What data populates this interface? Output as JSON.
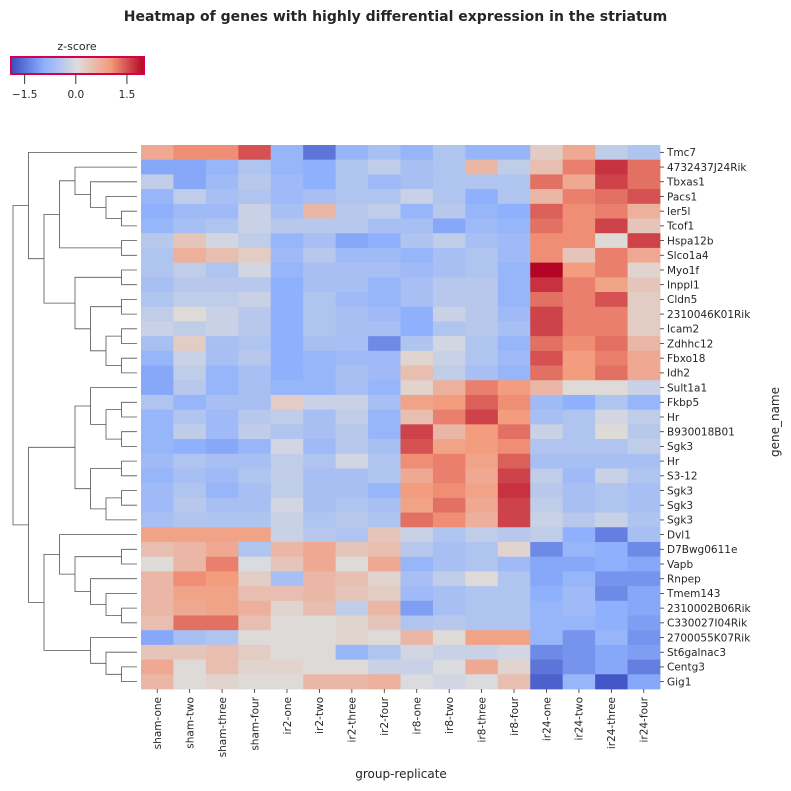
{
  "chart_data": {
    "type": "heatmap",
    "title": "Heatmap of genes with highly differential expression in the striatum",
    "xlabel": "group-replicate",
    "ylabel": "gene_name",
    "colormap": "coolwarm",
    "colorbar": {
      "label": "z-score",
      "range": [
        -1.9,
        2.0
      ],
      "ticks": [
        -1.5,
        0.0,
        1.5
      ],
      "tick_labels": [
        "−1.5",
        "0.0",
        "1.5"
      ]
    },
    "columns": [
      "sham-one",
      "sham-two",
      "sham-three",
      "sham-four",
      "ir2-one",
      "ir2-two",
      "ir2-three",
      "ir2-four",
      "ir8-one",
      "ir8-two",
      "ir8-three",
      "ir8-four",
      "ir24-one",
      "ir24-two",
      "ir24-three",
      "ir24-four"
    ],
    "rows": [
      "Tmc7",
      "4732437J24Rik",
      "Tbxas1",
      "Pacs1",
      "Ier5l",
      "Tcof1",
      "Hspa12b",
      "Slco1a4",
      "Myo1f",
      "Inppl1",
      "Cldn5",
      "2310046K01Rik",
      "Icam2",
      "Zdhhc12",
      "Fbxo18",
      "Idh2",
      "Sult1a1",
      "Fkbp5",
      "Hr",
      "B930018B01",
      "Sgk3",
      "Hr",
      "S3-12",
      "Sgk3",
      "Sgk3",
      "Sgk3",
      "Dvl1",
      "D7Bwg0611e",
      "Vapb",
      "Rnpep",
      "Tmem143",
      "2310002B06Rik",
      "C330027I04Rik",
      "2700055K07Rik",
      "St6galnac3",
      "Centg3",
      "Gig1"
    ],
    "values": [
      [
        0.8,
        1.1,
        1.1,
        1.5,
        -0.8,
        -1.5,
        -0.8,
        -0.6,
        -0.8,
        -0.5,
        -0.8,
        -0.8,
        0.3,
        0.8,
        -0.3,
        -0.5
      ],
      [
        -1.0,
        -1.0,
        -0.8,
        -0.5,
        -0.8,
        -0.9,
        -0.5,
        -0.3,
        -0.6,
        -0.5,
        0.6,
        -0.3,
        0.5,
        1.2,
        1.7,
        1.3
      ],
      [
        -0.3,
        -1.0,
        -0.7,
        -0.4,
        -0.7,
        -0.9,
        -0.5,
        -0.7,
        -0.6,
        -0.5,
        -0.5,
        -0.5,
        1.3,
        0.8,
        1.6,
        1.3
      ],
      [
        -0.8,
        -0.3,
        -0.6,
        -0.5,
        -0.7,
        -0.6,
        -0.5,
        -0.5,
        -0.2,
        -0.5,
        -0.9,
        -0.5,
        0.6,
        1.2,
        1.3,
        1.5
      ],
      [
        -0.9,
        -0.7,
        -0.7,
        -0.2,
        -0.6,
        0.6,
        -0.4,
        -0.3,
        -0.8,
        -0.4,
        -0.8,
        -0.9,
        1.4,
        1.1,
        1.2,
        0.7
      ],
      [
        -0.8,
        -0.6,
        -0.5,
        -0.2,
        -0.4,
        -0.4,
        -0.4,
        -0.6,
        -0.6,
        -1.0,
        -0.7,
        -0.8,
        1.3,
        1.1,
        1.6,
        0.4
      ],
      [
        -0.4,
        0.4,
        -0.1,
        -0.3,
        -0.8,
        -0.6,
        -1.0,
        -0.9,
        -0.5,
        -0.3,
        -0.6,
        -0.7,
        1.1,
        1.1,
        0.1,
        1.6
      ],
      [
        -0.5,
        0.7,
        0.5,
        0.3,
        -0.7,
        -0.4,
        -0.7,
        -0.7,
        -0.8,
        -0.6,
        -0.5,
        -0.7,
        1.1,
        0.4,
        1.2,
        0.8
      ],
      [
        -0.5,
        -0.3,
        -0.5,
        -0.1,
        -0.8,
        -0.6,
        -0.6,
        -0.6,
        -0.7,
        -0.6,
        -0.5,
        -0.8,
        2.0,
        1.0,
        1.2,
        0.2
      ],
      [
        -0.6,
        -0.4,
        -0.4,
        -0.4,
        -0.9,
        -0.6,
        -0.6,
        -0.8,
        -0.6,
        -0.4,
        -0.4,
        -0.8,
        1.7,
        1.2,
        0.9,
        0.4
      ],
      [
        -0.5,
        -0.3,
        -0.3,
        -0.2,
        -0.9,
        -0.5,
        -0.7,
        -0.8,
        -0.6,
        -0.4,
        -0.4,
        -0.8,
        1.3,
        1.2,
        1.5,
        0.3
      ],
      [
        -0.3,
        0.1,
        -0.2,
        -0.4,
        -0.9,
        -0.5,
        -0.6,
        -0.7,
        -0.9,
        -0.2,
        -0.4,
        -0.7,
        1.6,
        1.2,
        1.2,
        0.3
      ],
      [
        -0.2,
        -0.3,
        -0.2,
        -0.4,
        -0.9,
        -0.5,
        -0.6,
        -0.6,
        -0.9,
        -0.5,
        -0.4,
        -0.6,
        1.6,
        1.2,
        1.2,
        0.3
      ],
      [
        -0.6,
        0.3,
        -0.6,
        -0.5,
        -0.9,
        -0.6,
        -0.6,
        -1.3,
        -0.5,
        -0.1,
        -0.5,
        -0.8,
        1.3,
        1.1,
        1.3,
        0.6
      ],
      [
        -0.8,
        -0.2,
        -0.6,
        -0.4,
        -0.9,
        -0.8,
        -0.7,
        -0.7,
        0.2,
        -0.2,
        -0.5,
        -0.7,
        1.5,
        1.0,
        1.2,
        0.8
      ],
      [
        -1.0,
        -0.3,
        -0.8,
        -0.6,
        -0.9,
        -0.8,
        -0.6,
        -0.7,
        0.5,
        -0.3,
        -0.6,
        -0.8,
        1.3,
        1.0,
        1.3,
        0.8
      ],
      [
        -1.0,
        -0.4,
        -0.8,
        -0.6,
        -0.8,
        -0.8,
        -0.6,
        -0.8,
        0.2,
        0.7,
        1.2,
        1.0,
        0.6,
        0.1,
        0.1,
        -0.2
      ],
      [
        -0.5,
        -0.8,
        -0.6,
        -0.6,
        0.3,
        -0.2,
        -0.2,
        -0.6,
        0.9,
        1.0,
        1.4,
        1.1,
        -0.7,
        -0.9,
        -0.5,
        -0.8
      ],
      [
        -0.8,
        -0.5,
        -0.7,
        -0.4,
        -0.3,
        -0.6,
        -0.3,
        -0.8,
        0.5,
        1.2,
        1.6,
        1.0,
        -0.6,
        -0.5,
        -0.1,
        -0.3
      ],
      [
        -0.8,
        -0.3,
        -0.7,
        -0.3,
        -0.5,
        -0.6,
        -0.4,
        -0.8,
        1.6,
        0.6,
        1.0,
        1.3,
        -0.2,
        -0.5,
        0.1,
        -0.4
      ],
      [
        -0.8,
        -0.9,
        -1.0,
        -0.8,
        -0.1,
        -0.7,
        -0.4,
        -0.6,
        1.5,
        0.9,
        1.0,
        1.1,
        -0.5,
        -0.5,
        -0.5,
        -0.3
      ],
      [
        -0.7,
        -0.5,
        -0.6,
        -0.6,
        -0.3,
        -0.5,
        -0.1,
        -0.5,
        1.1,
        1.2,
        0.9,
        1.4,
        -0.6,
        -0.6,
        -0.6,
        -0.6
      ],
      [
        -0.8,
        -0.6,
        -0.7,
        -0.5,
        -0.3,
        -0.6,
        -0.6,
        -0.5,
        0.8,
        1.2,
        0.8,
        1.6,
        -0.3,
        -0.7,
        -0.2,
        -0.5
      ],
      [
        -0.7,
        -0.5,
        -0.8,
        -0.6,
        -0.3,
        -0.6,
        -0.6,
        -0.8,
        1.0,
        1.1,
        0.9,
        1.7,
        -0.4,
        -0.6,
        -0.5,
        -0.6
      ],
      [
        -0.7,
        -0.4,
        -0.6,
        -0.6,
        -0.1,
        -0.6,
        -0.5,
        -0.6,
        0.9,
        1.3,
        0.8,
        1.6,
        -0.3,
        -0.6,
        -0.5,
        -0.6
      ],
      [
        -0.6,
        -0.5,
        -0.5,
        -0.5,
        -0.2,
        -0.5,
        -0.4,
        -0.5,
        1.3,
        1.1,
        0.7,
        1.6,
        -0.2,
        -0.4,
        -0.2,
        -0.5
      ],
      [
        0.9,
        0.9,
        0.9,
        0.9,
        -0.2,
        -0.4,
        -0.5,
        0.4,
        -0.2,
        -0.5,
        -0.3,
        -0.4,
        -0.3,
        -0.9,
        -1.4,
        -0.6
      ],
      [
        0.5,
        0.6,
        0.8,
        -0.5,
        0.6,
        0.8,
        0.4,
        0.5,
        -0.4,
        -0.6,
        -0.5,
        0.2,
        -1.3,
        -0.8,
        -0.9,
        -1.3
      ],
      [
        0.1,
        0.6,
        1.2,
        0.0,
        0.4,
        0.8,
        0.1,
        0.8,
        -0.8,
        -0.6,
        -0.5,
        -0.7,
        -1.0,
        -1.0,
        -0.9,
        -1.0
      ],
      [
        0.6,
        1.1,
        1.0,
        0.3,
        -0.6,
        0.6,
        0.5,
        0.2,
        -0.6,
        -0.3,
        0.1,
        -0.5,
        -1.0,
        -0.8,
        -1.2,
        -1.2
      ],
      [
        0.6,
        0.9,
        0.9,
        0.5,
        0.5,
        0.6,
        0.4,
        0.3,
        -0.7,
        -0.6,
        -0.5,
        -0.5,
        -0.9,
        -0.7,
        -1.3,
        -1.0
      ],
      [
        0.6,
        0.8,
        0.9,
        0.7,
        0.2,
        0.5,
        -0.3,
        0.6,
        -1.1,
        -0.6,
        -0.5,
        -0.5,
        -0.8,
        -0.7,
        -0.9,
        -1.0
      ],
      [
        0.5,
        1.3,
        1.3,
        0.5,
        0.1,
        0.1,
        0.2,
        0.4,
        -0.5,
        -0.4,
        -0.5,
        -0.5,
        -0.8,
        -0.8,
        -0.9,
        -1.1
      ],
      [
        -1.0,
        -0.6,
        -0.5,
        0.1,
        0.1,
        0.1,
        0.2,
        0.1,
        0.6,
        0.1,
        0.9,
        0.9,
        -0.8,
        -1.2,
        -0.8,
        -1.2
      ],
      [
        0.4,
        0.4,
        0.5,
        0.3,
        0.1,
        0.1,
        -0.8,
        -0.5,
        -0.1,
        -0.2,
        -0.2,
        -0.1,
        -1.3,
        -1.2,
        -1.0,
        -1.1
      ],
      [
        0.8,
        0.1,
        0.5,
        0.2,
        0.2,
        0.1,
        0.1,
        -0.2,
        -0.2,
        0.0,
        0.8,
        0.2,
        -1.5,
        -1.2,
        -1.0,
        -1.4
      ],
      [
        0.6,
        0.1,
        0.2,
        0.1,
        0.1,
        0.6,
        0.6,
        0.7,
        0.0,
        -0.1,
        0.0,
        0.5,
        -1.7,
        -0.8,
        -1.8,
        -1.0
      ]
    ]
  }
}
